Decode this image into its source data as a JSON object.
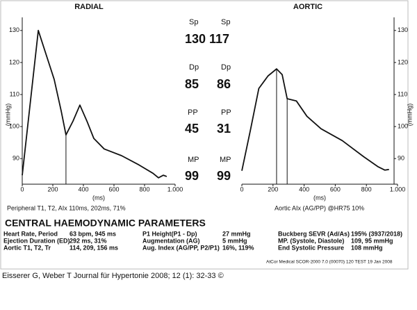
{
  "chart_data": [
    {
      "type": "line",
      "title": "RADIAL",
      "x_label": "(ms)",
      "y_label": "(mmHg)",
      "y_axis_side": "left",
      "color": "#111111",
      "x": [
        0,
        105,
        173,
        209,
        255,
        286,
        332,
        377,
        423,
        468,
        536,
        650,
        764,
        855,
        891,
        923,
        945
      ],
      "values": [
        84.8,
        130,
        120,
        114.7,
        104.8,
        97.4,
        101.7,
        106.7,
        101.7,
        96.3,
        93,
        90.9,
        88,
        85.4,
        84,
        84.8,
        84.4
      ],
      "vlines": [
        286
      ],
      "xlim": [
        0,
        1000
      ],
      "xticks": [
        0,
        200,
        400,
        600,
        800,
        {
          "value": 1000,
          "label": "1.000"
        }
      ],
      "ylim": [
        82,
        133
      ],
      "yticks": [
        90,
        100,
        110,
        120,
        130
      ]
    },
    {
      "type": "line",
      "title": "AORTIC",
      "x_label": "(ms)",
      "y_label": "(mmHg)",
      "y_axis_side": "right",
      "color": "#111111",
      "x": [
        0,
        55,
        109,
        168,
        223,
        259,
        291,
        350,
        418,
        509,
        645,
        782,
        873,
        918,
        945
      ],
      "values": [
        86.2,
        98.9,
        111.9,
        115.8,
        118,
        116.2,
        108.7,
        108,
        103.2,
        99.3,
        95.6,
        90.6,
        87.5,
        86.4,
        86.6
      ],
      "vlines": [
        223,
        291
      ],
      "xlim": [
        0,
        1000
      ],
      "xticks": [
        0,
        200,
        400,
        600,
        800,
        {
          "value": 1000,
          "label": "1.000"
        }
      ],
      "ylim": [
        82,
        133
      ],
      "yticks": [
        90,
        100,
        110,
        120,
        130
      ]
    }
  ],
  "center": {
    "sp": [
      "Sp",
      "Sp",
      "130",
      "117"
    ],
    "dp": [
      "Dp",
      "Dp",
      "85",
      "86"
    ],
    "pp": [
      "PP",
      "PP",
      "45",
      "31"
    ],
    "mp": [
      "MP",
      "MP",
      "99",
      "99"
    ]
  },
  "peripheral": "Peripheral T1, T2, AIx     110ms, 202ms, 71%",
  "aortic_aix": "Aortic AIx   (AG/PP) @HR75     10%",
  "section_title": "CENTRAL HAEMODYNAMIC PARAMETERS",
  "parameters": [
    [
      [
        "Heart Rate, Period",
        "63 bpm, 945 ms"
      ],
      [
        "Ejection Duration (ED)",
        "292 ms, 31%"
      ],
      [
        "Aortic T1, T2, Tr",
        "114, 209, 156 ms"
      ]
    ],
    [
      [
        "P1 Height(P1 - Dp)",
        "27 mmHg"
      ],
      [
        "Augmentation (AG)",
        "5 mmHg"
      ],
      [
        "Aug. Index (AG/PP, P2/P1)",
        "16%, 119%"
      ]
    ],
    [
      [
        "Buckberg SEVR (Ad/As)",
        "195% (3937/2018)"
      ],
      [
        "MP. (Systole, Diastole)",
        "109, 95 mmHg"
      ],
      [
        "End Systolic Pressure",
        "108 mmHg"
      ]
    ]
  ],
  "device": "AtCor Medical SCOR-2000 7.0 (00070) 120 TEST  19 Jan 2008",
  "caption": "Eisserer G, Weber T Journal für Hypertonie 2008; 12 (1): 32-33 ©"
}
